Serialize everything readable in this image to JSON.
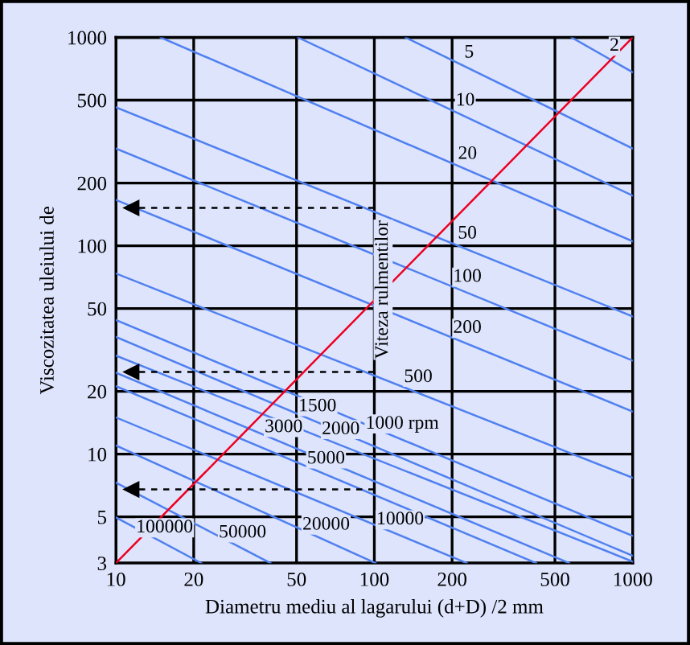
{
  "chart_data": {
    "type": "line",
    "xlabel": "Diametru mediu al lagarului (d+D) /2 mm",
    "ylabel": "Viscozitatea uleiului de",
    "log": "xy",
    "grid": true,
    "xlim": [
      10,
      1000
    ],
    "ylim": [
      3,
      1000
    ],
    "xticks": [
      10,
      20,
      50,
      100,
      200,
      500,
      1000
    ],
    "yticks": [
      3,
      5,
      10,
      20,
      50,
      100,
      200,
      500,
      1000
    ],
    "series": [
      {
        "name": "2",
        "color": "#5080f0",
        "x": [
          580,
          1000
        ],
        "values": [
          1000,
          680
        ]
      },
      {
        "name": "5",
        "color": "#5080f0",
        "x": [
          132,
          1000
        ],
        "values": [
          1000,
          293
        ]
      },
      {
        "name": "10",
        "color": "#5080f0",
        "x": [
          50.6,
          1000
        ],
        "values": [
          1000,
          174
        ]
      },
      {
        "name": "20",
        "color": "#5080f0",
        "x": [
          14.9,
          1000
        ],
        "values": [
          1000,
          105
        ]
      },
      {
        "name": "50",
        "color": "#5080f0",
        "x": [
          10,
          1000
        ],
        "values": [
          462,
          45.8
        ]
      },
      {
        "name": "100",
        "color": "#5080f0",
        "x": [
          10,
          1000
        ],
        "values": [
          293,
          28.1
        ]
      },
      {
        "name": "200",
        "color": "#5080f0",
        "x": [
          10,
          1000
        ],
        "values": [
          166,
          16.0
        ]
      },
      {
        "name": "500",
        "color": "#5080f0",
        "x": [
          10,
          1000
        ],
        "values": [
          73.6,
          7.7
        ]
      },
      {
        "name": "1000 rpm",
        "color": "#5080f0",
        "x": [
          10,
          1000
        ],
        "values": [
          44,
          4.05
        ]
      },
      {
        "name": "1500",
        "color": "#5080f0",
        "x": [
          10,
          1000
        ],
        "values": [
          36.5,
          3.25
        ]
      },
      {
        "name": "2000",
        "color": "#5080f0",
        "x": [
          10,
          1000
        ],
        "values": [
          29.7,
          3.05
        ]
      },
      {
        "name": "3000",
        "color": "#5080f0",
        "x": [
          10,
          568
        ],
        "values": [
          24.6,
          3
        ]
      },
      {
        "name": "5000",
        "color": "#5080f0",
        "x": [
          10,
          423
        ],
        "values": [
          21.2,
          3
        ]
      },
      {
        "name": "10000",
        "color": "#5080f0",
        "x": [
          10,
          228
        ],
        "values": [
          15.0,
          3
        ]
      },
      {
        "name": "20000",
        "color": "#5080f0",
        "x": [
          10,
          101
        ],
        "values": [
          11.0,
          3
        ]
      },
      {
        "name": "50000",
        "color": "#5080f0",
        "x": [
          10,
          39.6
        ],
        "values": [
          7.3,
          3
        ]
      },
      {
        "name": "100000",
        "color": "#5080f0",
        "x": [
          10,
          21.4
        ],
        "values": [
          4.97,
          3
        ]
      },
      {
        "color": "#ee0022",
        "x": [
          10,
          1000
        ],
        "values": [
          3,
          1000
        ]
      },
      {
        "color": "#000000",
        "x": [
          100,
          11.5
        ],
        "values": [
          152,
          152
        ],
        "line_style": "dashed",
        "marker": "triangle"
      },
      {
        "color": "#000000",
        "x": [
          100,
          11.5
        ],
        "values": [
          24.8,
          24.8
        ],
        "line_style": "dashed",
        "marker": "triangle"
      },
      {
        "color": "#000000",
        "x": [
          100,
          11.5
        ],
        "values": [
          6.77,
          6.77
        ],
        "line_style": "dashed",
        "marker": "triangle"
      }
    ],
    "annotations": [
      "Viteza rulmentilor"
    ]
  }
}
